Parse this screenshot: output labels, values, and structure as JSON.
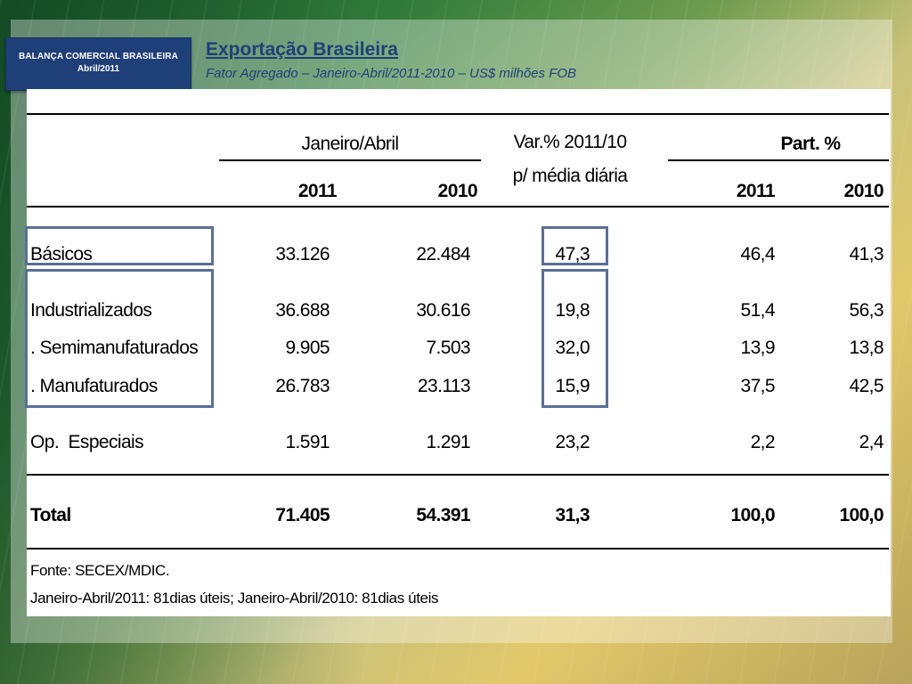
{
  "badge": {
    "line1": "BALANÇA COMERCIAL BRASILEIRA",
    "line2": "Abril/2011"
  },
  "header": {
    "title": "Exportação Brasileira",
    "subtitle": "Fator Agregado – Janeiro-Abril/2011-2010 – US$ milhões FOB"
  },
  "table": {
    "group_period": "Janeiro/Abril",
    "group_var_line1": "Var.% 2011/10",
    "group_var_line2": "p/ média diária",
    "group_part": "Part. %",
    "col_2011": "2011",
    "col_2010": "2010",
    "col_part_2011": "2011",
    "col_part_2010": "2010",
    "rows": [
      {
        "label": "Básicos",
        "v2011": "33.126",
        "v2010": "22.484",
        "var": "47,3",
        "p2011": "46,4",
        "p2010": "41,3"
      },
      {
        "label": "Industrializados",
        "v2011": "36.688",
        "v2010": "30.616",
        "var": "19,8",
        "p2011": "51,4",
        "p2010": "56,3"
      },
      {
        "label": ". Semimanufaturados",
        "v2011": "9.905",
        "v2010": "7.503",
        "var": "32,0",
        "p2011": "13,9",
        "p2010": "13,8"
      },
      {
        "label": ". Manufaturados",
        "v2011": "26.783",
        "v2010": "23.113",
        "var": "15,9",
        "p2011": "37,5",
        "p2010": "42,5"
      },
      {
        "label": "Op.  Especiais",
        "v2011": "1.591",
        "v2010": "1.291",
        "var": "23,2",
        "p2011": "2,2",
        "p2010": "2,4"
      },
      {
        "label": "Total",
        "v2011": "71.405",
        "v2010": "54.391",
        "var": "31,3",
        "p2011": "100,0",
        "p2010": "100,0"
      }
    ]
  },
  "footer": {
    "source": "Fonte: SECEX/MDIC.",
    "note": "Janeiro-Abril/2011: 81dias úteis; Janeiro-Abril/2010: 81dias úteis"
  },
  "colors": {
    "brand_blue": "#1f3f79",
    "highlight_box": "#5a6f98"
  }
}
